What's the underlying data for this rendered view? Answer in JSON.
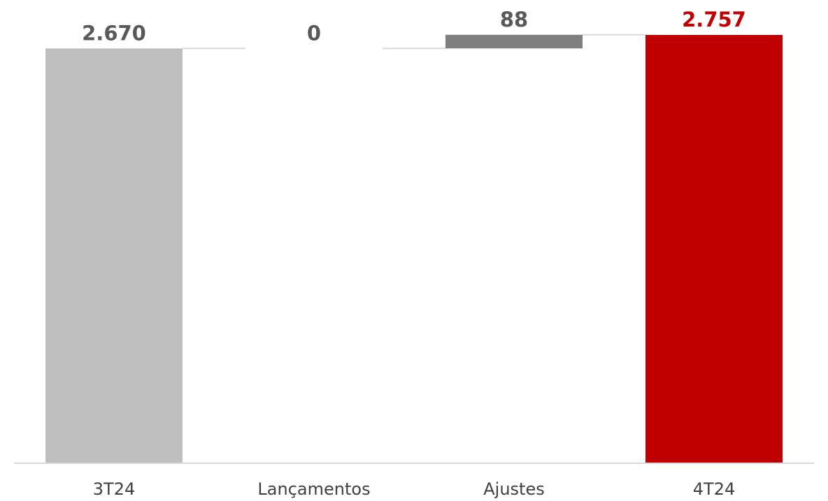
{
  "chart_data": {
    "type": "bar",
    "variant": "waterfall",
    "categories": [
      "3T24",
      "Lançamentos",
      "Ajustes",
      "4T24"
    ],
    "values": [
      2670,
      0,
      88,
      2757
    ],
    "data_labels": [
      "2.670",
      "0",
      "88",
      "2.757"
    ],
    "bar_kinds": [
      "total",
      "delta",
      "delta",
      "total"
    ],
    "title": "",
    "xlabel": "",
    "ylabel": "",
    "ylim": [
      0,
      2757
    ],
    "grid": false,
    "legend": "none",
    "colors": {
      "start_total": "#BFBFBF",
      "delta": "#7F7F7F",
      "end_total": "#C00000",
      "label_default": "#595959",
      "label_end": "#C00000",
      "connector": "#D9D9D9",
      "axis": "#D9D9D9"
    }
  }
}
